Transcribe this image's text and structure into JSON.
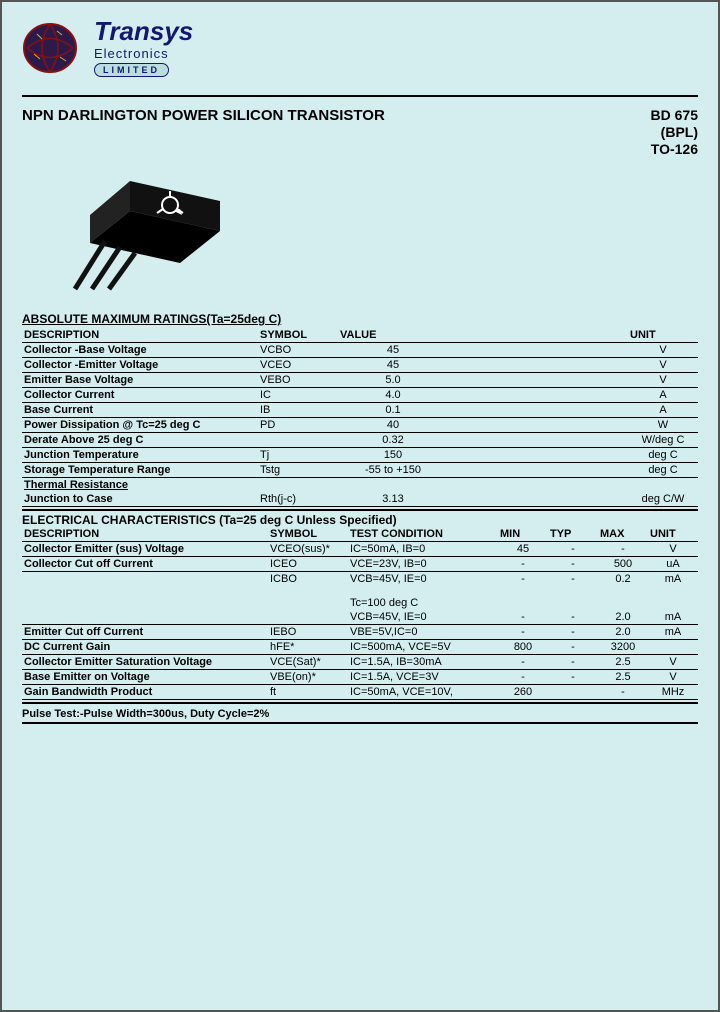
{
  "logo": {
    "company": "Transys",
    "subtitle": "Electronics",
    "limited": "LIMITED"
  },
  "title": "NPN DARLINGTON POWER SILICON TRANSISTOR",
  "part": {
    "number": "BD 675",
    "bpl": "(BPL)",
    "package": "TO-126"
  },
  "abs_heading": "ABSOLUTE MAXIMUM RATINGS(Ta=25deg C)",
  "abs_headers": {
    "desc": "DESCRIPTION",
    "sym": "SYMBOL",
    "val": "VALUE",
    "unit": "UNIT"
  },
  "abs_rows": [
    {
      "desc": "Collector -Base Voltage",
      "sym": "VCBO",
      "val": "45",
      "unit": "V"
    },
    {
      "desc": "Collector -Emitter Voltage",
      "sym": "VCEO",
      "val": "45",
      "unit": "V"
    },
    {
      "desc": "Emitter Base Voltage",
      "sym": "VEBO",
      "val": "5.0",
      "unit": "V"
    },
    {
      "desc": "Collector Current",
      "sym": "IC",
      "val": "4.0",
      "unit": "A"
    },
    {
      "desc": "Base Current",
      "sym": "IB",
      "val": "0.1",
      "unit": "A"
    },
    {
      "desc": "Power Dissipation @ Tc=25 deg C",
      "sym": "PD",
      "val": "40",
      "unit": "W"
    },
    {
      "desc": "Derate Above 25 deg C",
      "sym": "",
      "val": "0.32",
      "unit": "W/deg C"
    },
    {
      "desc": "Junction Temperature",
      "sym": "Tj",
      "val": "150",
      "unit": "deg C"
    },
    {
      "desc": "Storage Temperature Range",
      "sym": "Tstg",
      "val": "-55 to +150",
      "unit": "deg C"
    }
  ],
  "thermal_head": "Thermal Resistance",
  "thermal_row": {
    "desc": "Junction to Case",
    "sym": "Rth(j-c)",
    "val": "3.13",
    "unit": "deg C/W"
  },
  "ec_heading": "ELECTRICAL CHARACTERISTICS (Ta=25 deg C Unless Specified)",
  "ec_headers": {
    "desc": "DESCRIPTION",
    "sym": "SYMBOL",
    "tc": "TEST CONDITION",
    "min": "MIN",
    "typ": "TYP",
    "max": "MAX",
    "unit": "UNIT"
  },
  "ec_rows": [
    {
      "desc": "Collector Emitter  (sus) Voltage",
      "sym": "VCEO(sus)*",
      "tc": "IC=50mA, IB=0",
      "min": "45",
      "typ": "-",
      "max": "-",
      "unit": "V"
    },
    {
      "desc": "Collector Cut off Current",
      "sym": "ICEO",
      "tc": "VCE=23V, IB=0",
      "min": "-",
      "typ": "-",
      "max": "500",
      "unit": "uA"
    },
    {
      "desc": "",
      "sym": "ICBO",
      "tc": "VCB=45V, IE=0",
      "min": "-",
      "typ": "-",
      "max": "0.2",
      "unit": "mA"
    },
    {
      "desc": "",
      "sym": "",
      "tc": "Tc=100 deg C",
      "min": "",
      "typ": "",
      "max": "",
      "unit": ""
    },
    {
      "desc": "",
      "sym": "",
      "tc": "VCB=45V, IE=0",
      "min": "-",
      "typ": "-",
      "max": "2.0",
      "unit": "mA"
    },
    {
      "desc": "Emitter Cut off Current",
      "sym": "IEBO",
      "tc": "VBE=5V,IC=0",
      "min": "-",
      "typ": "-",
      "max": "2.0",
      "unit": "mA"
    },
    {
      "desc": "DC Current Gain",
      "sym": "hFE*",
      "tc": "IC=500mA, VCE=5V",
      "min": "800",
      "typ": "-",
      "max": "3200",
      "unit": ""
    },
    {
      "desc": "Collector Emitter Saturation Voltage",
      "sym": "VCE(Sat)*",
      "tc": "IC=1.5A, IB=30mA",
      "min": "-",
      "typ": "-",
      "max": "2.5",
      "unit": "V"
    },
    {
      "desc": "Base Emitter on Voltage",
      "sym": "VBE(on)*",
      "tc": "IC=1.5A, VCE=3V",
      "min": "-",
      "typ": "-",
      "max": "2.5",
      "unit": "V"
    },
    {
      "desc": "Gain Bandwidth Product",
      "sym": "ft",
      "tc": "IC=50mA, VCE=10V,",
      "min": "260",
      "typ": "",
      "max": "-",
      "unit": "MHz"
    }
  ],
  "pulse_note": "Pulse Test:-Pulse Width=300us, Duty Cycle=2%",
  "colors": {
    "bg": "#d4eef0",
    "logo_blue": "#14176e",
    "globe_dark": "#2b1a4a",
    "globe_red": "#8a1010",
    "chip_black": "#111"
  }
}
